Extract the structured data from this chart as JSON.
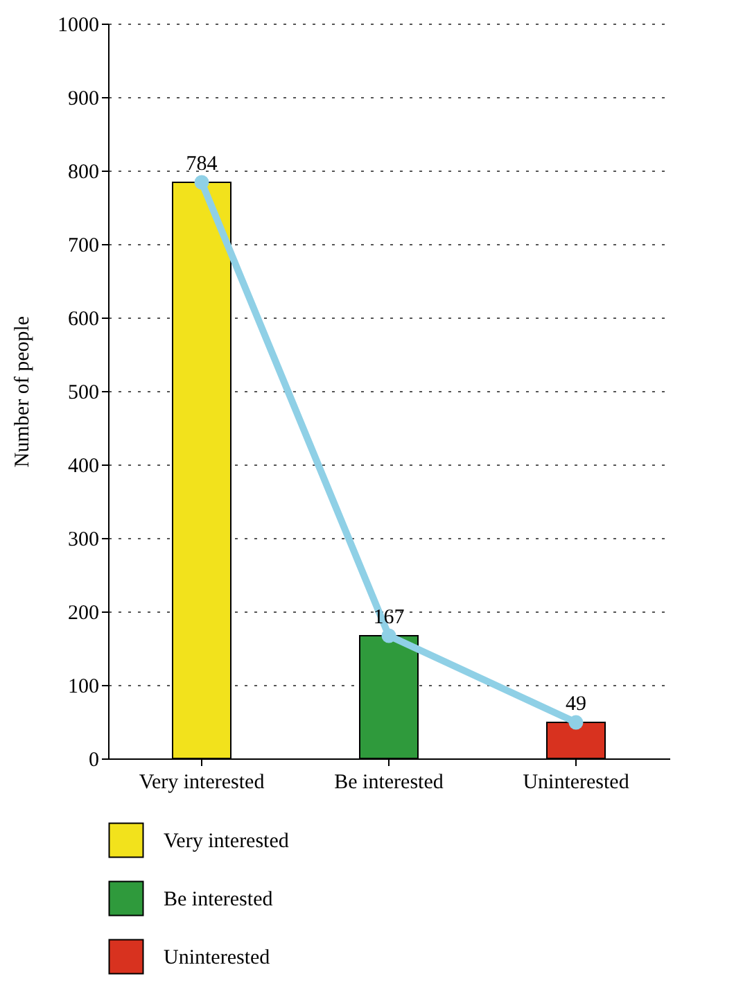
{
  "chart_data": {
    "type": "bar",
    "stacked": true,
    "ylabel": "Number of people",
    "categories": [
      "Very interested",
      "Be interested",
      "Uninterested"
    ],
    "series": [
      {
        "name": "Very interested",
        "color": "#f2e21c",
        "values": [
          784,
          null,
          null
        ]
      },
      {
        "name": "Be interested",
        "color": "#2f9a3c",
        "values": [
          null,
          167,
          null
        ]
      },
      {
        "name": "Uninterested",
        "color": "#d8321f",
        "values": [
          null,
          null,
          49
        ]
      },
      {
        "type": "line",
        "color": "#8fd0e6",
        "values": [
          784,
          167,
          49
        ],
        "value_labels": [
          "784",
          "167",
          "49"
        ]
      }
    ],
    "ylim": [
      0,
      1000
    ],
    "yticks": [
      0,
      100,
      200,
      300,
      400,
      500,
      600,
      700,
      800,
      900,
      1000
    ],
    "grid": "y",
    "legend": "bottom",
    "marker": "circle"
  }
}
